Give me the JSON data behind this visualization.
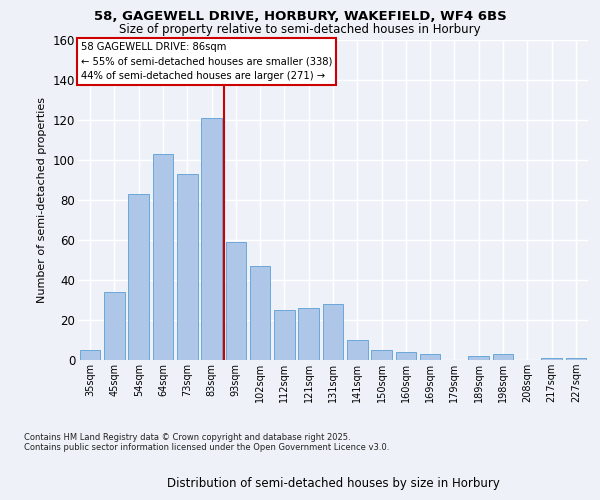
{
  "title_line1": "58, GAGEWELL DRIVE, HORBURY, WAKEFIELD, WF4 6BS",
  "title_line2": "Size of property relative to semi-detached houses in Horbury",
  "xlabel": "Distribution of semi-detached houses by size in Horbury",
  "ylabel": "Number of semi-detached properties",
  "categories": [
    "35sqm",
    "45sqm",
    "54sqm",
    "64sqm",
    "73sqm",
    "83sqm",
    "93sqm",
    "102sqm",
    "112sqm",
    "121sqm",
    "131sqm",
    "141sqm",
    "150sqm",
    "160sqm",
    "169sqm",
    "179sqm",
    "189sqm",
    "198sqm",
    "208sqm",
    "217sqm",
    "227sqm"
  ],
  "values": [
    5,
    34,
    83,
    103,
    93,
    121,
    59,
    47,
    25,
    26,
    28,
    10,
    5,
    4,
    3,
    0,
    2,
    3,
    0,
    1,
    1
  ],
  "bar_color": "#aec6e8",
  "bar_edge_color": "#5a9fd4",
  "property_line_x": 5.5,
  "annotation_title": "58 GAGEWELL DRIVE: 86sqm",
  "annotation_line2": "← 55% of semi-detached houses are smaller (338)",
  "annotation_line3": "44% of semi-detached houses are larger (271) →",
  "vline_color": "#cc0000",
  "ylim": [
    0,
    160
  ],
  "yticks": [
    0,
    20,
    40,
    60,
    80,
    100,
    120,
    140,
    160
  ],
  "footnote": "Contains HM Land Registry data © Crown copyright and database right 2025.\nContains public sector information licensed under the Open Government Licence v3.0.",
  "background_color": "#eef2f8",
  "plot_bg_color": "#eef2f8",
  "grid_color": "#ffffff"
}
